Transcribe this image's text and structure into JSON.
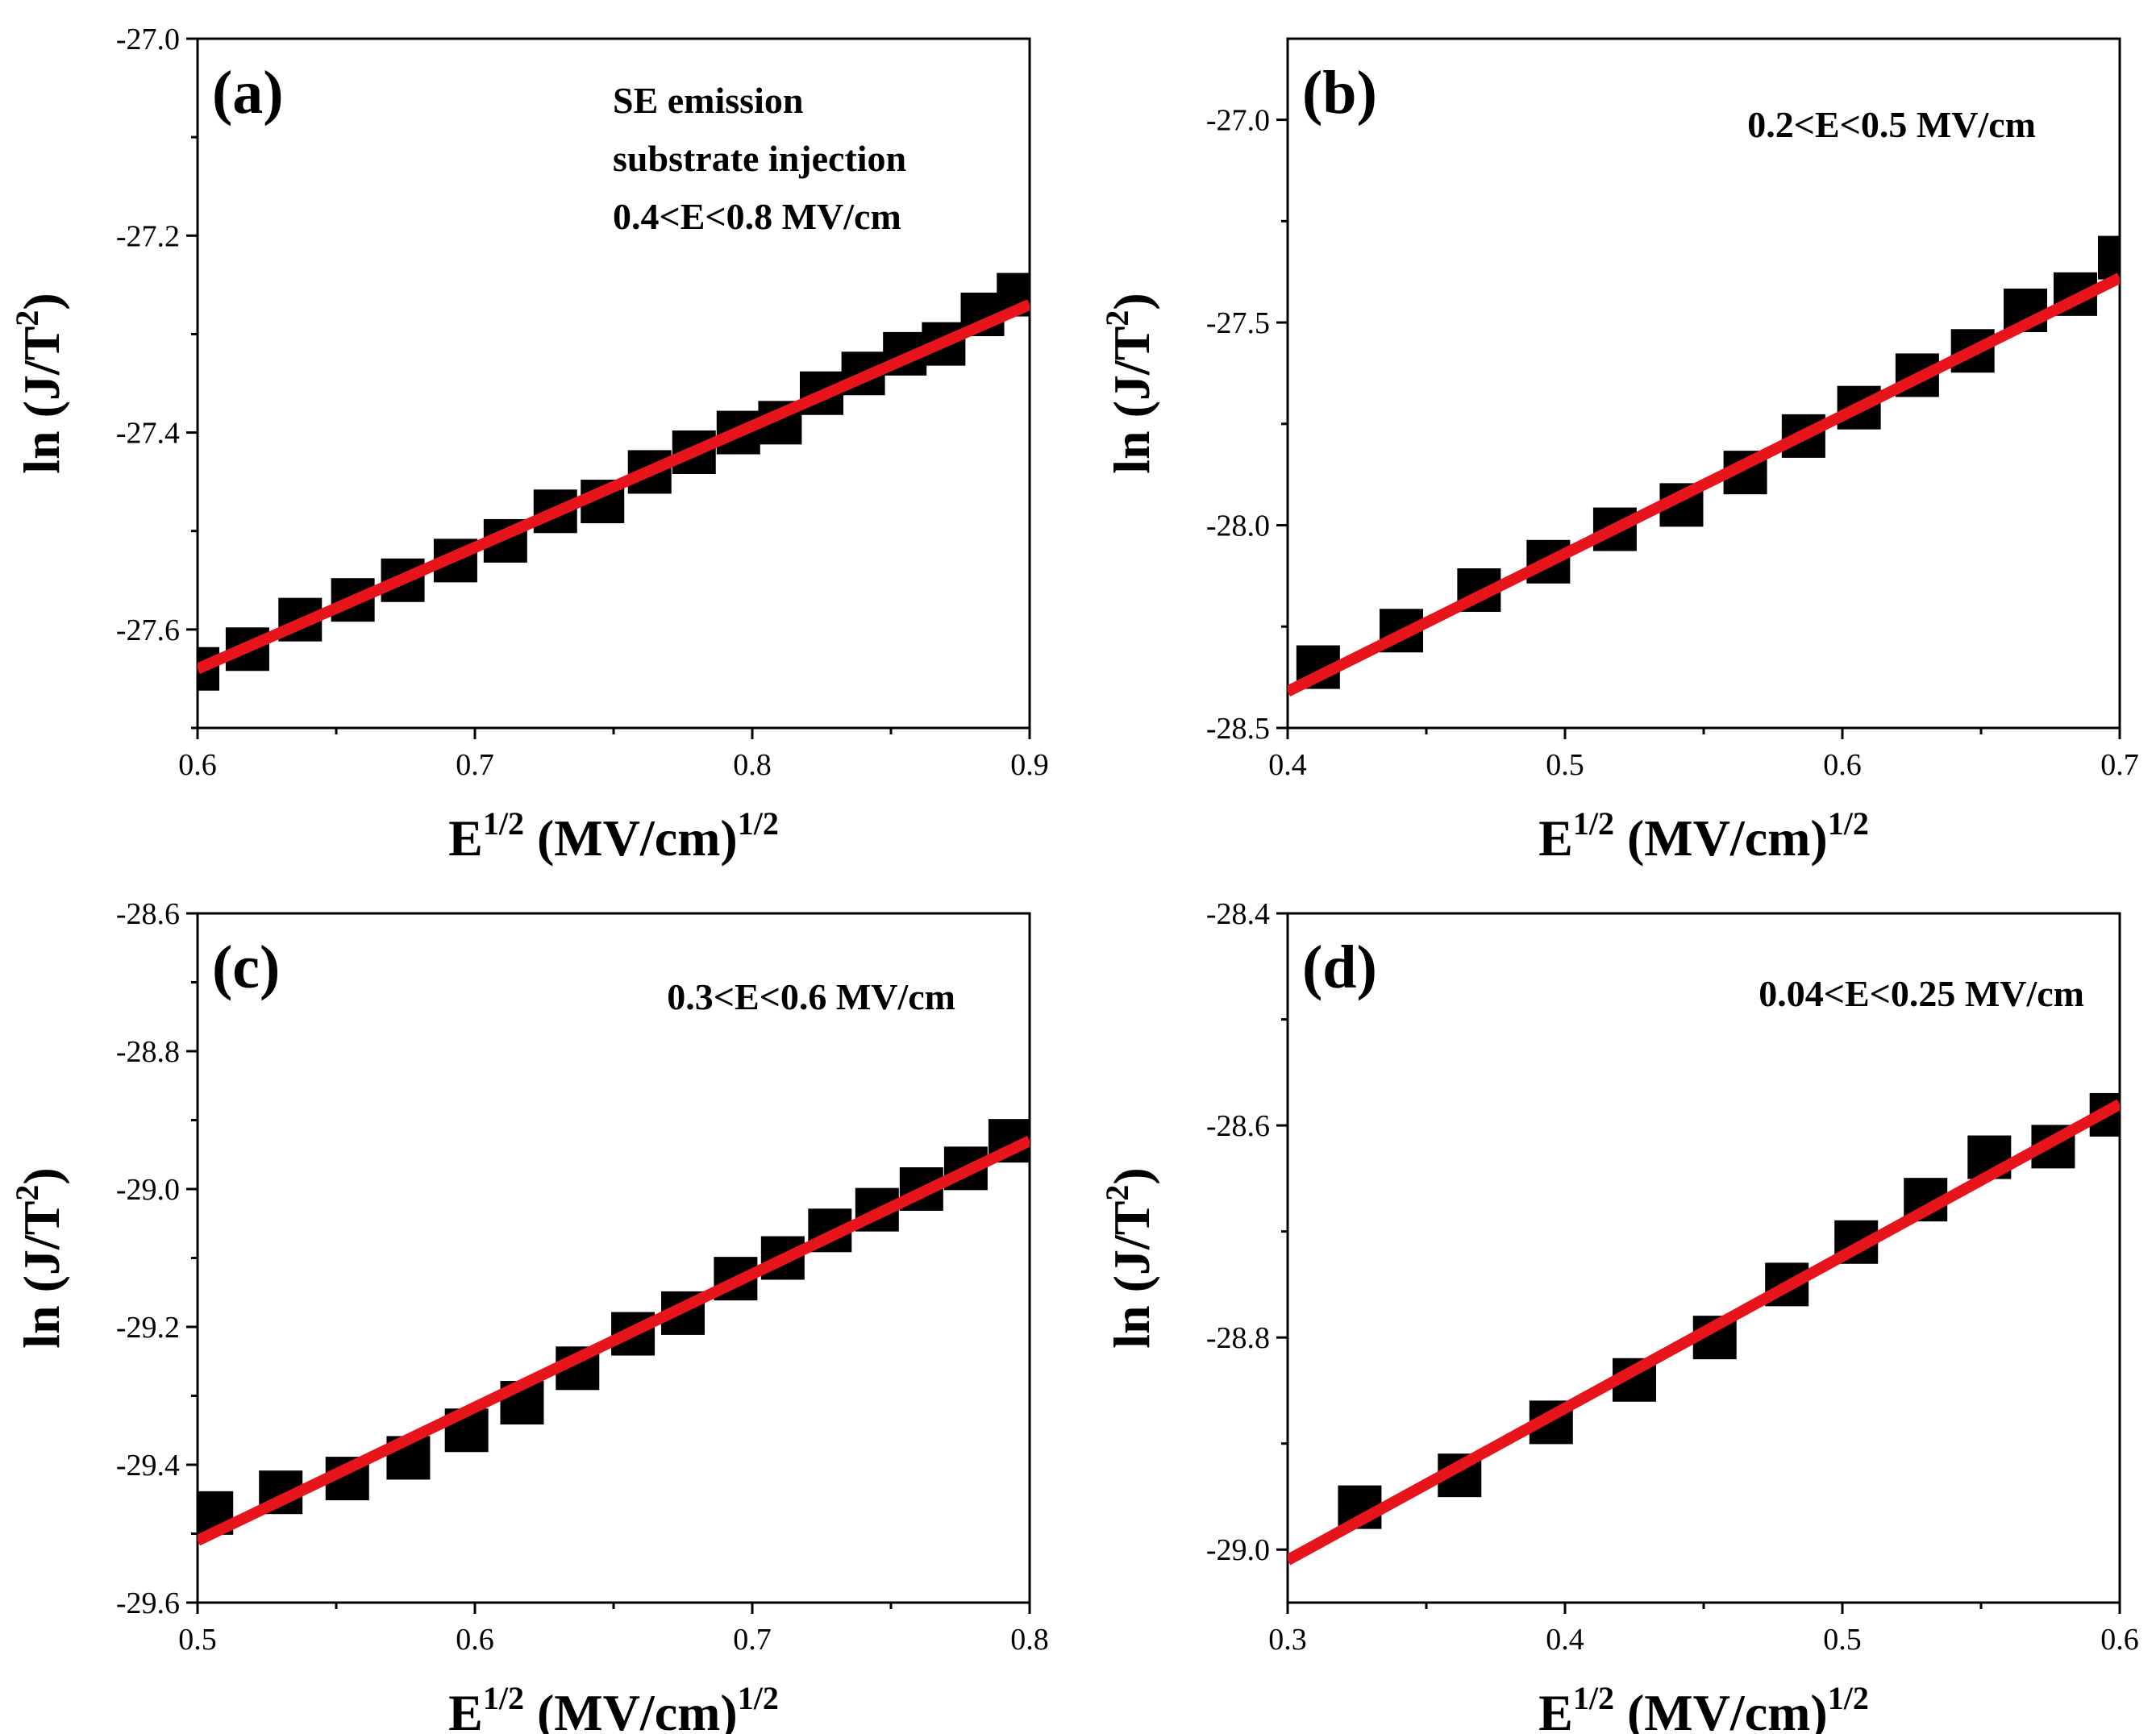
{
  "chart_data": [
    {
      "type": "scatter",
      "panel_label": "(a)",
      "xlabel": "E",
      "xlabel_sup": "1/2",
      "xlabel_unit": "(MV/cm)",
      "xlabel_unit_sup": "1/2",
      "ylabel": "ln (J/T",
      "ylabel_sup": "2",
      "ylabel_end": ")",
      "xlim": [
        0.6,
        0.9
      ],
      "ylim": [
        -27.7,
        -27.0
      ],
      "xticks": [
        0.6,
        0.7,
        0.8,
        0.9
      ],
      "xtick_labels": [
        "0.6",
        "0.7",
        "0.8",
        "0.9"
      ],
      "yticks": [
        -27.6,
        -27.4,
        -27.2,
        -27.0
      ],
      "ytick_labels": [
        "-27.6",
        "-27.4",
        "-27.2",
        "-27.0"
      ],
      "annotations": [
        "SE emission",
        "substrate injection",
        "0.4<E<0.8 MV/cm"
      ],
      "series": [
        {
          "name": "data",
          "marker": "square",
          "color": "#000000",
          "x": [
            0.6,
            0.618,
            0.637,
            0.656,
            0.674,
            0.693,
            0.711,
            0.729,
            0.746,
            0.763,
            0.779,
            0.795,
            0.81,
            0.825,
            0.84,
            0.855,
            0.869,
            0.883,
            0.896
          ],
          "y": [
            -27.64,
            -27.62,
            -27.59,
            -27.57,
            -27.55,
            -27.53,
            -27.51,
            -27.48,
            -27.47,
            -27.44,
            -27.42,
            -27.4,
            -27.39,
            -27.36,
            -27.34,
            -27.32,
            -27.31,
            -27.28,
            -27.26
          ]
        },
        {
          "name": "fit",
          "type": "line",
          "color": "#e8141c",
          "x": [
            0.6,
            0.9
          ],
          "y": [
            -27.64,
            -27.27
          ]
        }
      ]
    },
    {
      "type": "scatter",
      "panel_label": "(b)",
      "xlabel": "E",
      "xlabel_sup": "1/2",
      "xlabel_unit": "(MV/cm)",
      "xlabel_unit_sup": "1/2",
      "ylabel": "ln (J/T",
      "ylabel_sup": "2",
      "ylabel_end": ")",
      "xlim": [
        0.4,
        0.7
      ],
      "ylim": [
        -28.5,
        -26.8
      ],
      "xticks": [
        0.4,
        0.5,
        0.6,
        0.7
      ],
      "xtick_labels": [
        "0.4",
        "0.5",
        "0.6",
        "0.7"
      ],
      "yticks": [
        -28.5,
        -28.0,
        -27.5,
        -27.0
      ],
      "ytick_labels": [
        "-28.5",
        "-28.0",
        "-27.5",
        "-27.0"
      ],
      "annotations": [
        "0.2<E<0.5 MV/cm"
      ],
      "series": [
        {
          "name": "data",
          "marker": "square",
          "color": "#000000",
          "x": [
            0.411,
            0.441,
            0.469,
            0.494,
            0.518,
            0.542,
            0.565,
            0.586,
            0.606,
            0.627,
            0.647,
            0.666,
            0.684,
            0.7
          ],
          "y": [
            -28.35,
            -28.26,
            -28.16,
            -28.09,
            -28.01,
            -27.95,
            -27.87,
            -27.78,
            -27.71,
            -27.63,
            -27.57,
            -27.47,
            -27.43,
            -27.34
          ]
        },
        {
          "name": "fit",
          "type": "line",
          "color": "#e8141c",
          "x": [
            0.4,
            0.7
          ],
          "y": [
            -28.41,
            -27.39
          ]
        }
      ]
    },
    {
      "type": "scatter",
      "panel_label": "(c)",
      "xlabel": "E",
      "xlabel_sup": "1/2",
      "xlabel_unit": "(MV/cm)",
      "xlabel_unit_sup": "1/2",
      "ylabel": "ln (J/T",
      "ylabel_sup": "2",
      "ylabel_end": ")",
      "xlim": [
        0.5,
        0.8
      ],
      "ylim": [
        -29.6,
        -28.6
      ],
      "xticks": [
        0.5,
        0.6,
        0.7,
        0.8
      ],
      "xtick_labels": [
        "0.5",
        "0.6",
        "0.7",
        "0.8"
      ],
      "yticks": [
        -29.6,
        -29.4,
        -29.2,
        -29.0,
        -28.8,
        -28.6
      ],
      "ytick_labels": [
        "-29.6",
        "-29.4",
        "-29.2",
        "-29.0",
        "-28.8",
        "-28.6"
      ],
      "annotations": [
        "0.3<E<0.6 MV/cm"
      ],
      "series": [
        {
          "name": "data",
          "marker": "square",
          "color": "#000000",
          "x": [
            0.505,
            0.53,
            0.554,
            0.576,
            0.597,
            0.617,
            0.637,
            0.657,
            0.675,
            0.694,
            0.711,
            0.728,
            0.745,
            0.761,
            0.777,
            0.793
          ],
          "y": [
            -29.47,
            -29.44,
            -29.42,
            -29.39,
            -29.35,
            -29.31,
            -29.26,
            -29.21,
            -29.18,
            -29.13,
            -29.1,
            -29.06,
            -29.03,
            -29.0,
            -28.97,
            -28.93
          ]
        },
        {
          "name": "fit",
          "type": "line",
          "color": "#e8141c",
          "x": [
            0.5,
            0.8
          ],
          "y": [
            -29.51,
            -28.93
          ]
        }
      ]
    },
    {
      "type": "scatter",
      "panel_label": "(d)",
      "xlabel": "E",
      "xlabel_sup": "1/2",
      "xlabel_unit": "(MV/cm)",
      "xlabel_unit_sup": "1/2",
      "ylabel": "ln (J/T",
      "ylabel_sup": "2",
      "ylabel_end": ")",
      "xlim": [
        0.3,
        0.6
      ],
      "ylim": [
        -29.05,
        -28.4
      ],
      "xticks": [
        0.3,
        0.4,
        0.5,
        0.6
      ],
      "xtick_labels": [
        "0.3",
        "0.4",
        "0.5",
        "0.6"
      ],
      "yticks": [
        -29.0,
        -28.8,
        -28.6,
        -28.4
      ],
      "ytick_labels": [
        "-29.0",
        "-28.8",
        "-28.6",
        "-28.4"
      ],
      "annotations": [
        "0.04<E<0.25 MV/cm"
      ],
      "series": [
        {
          "name": "data",
          "marker": "square",
          "color": "#000000",
          "x": [
            0.326,
            0.362,
            0.395,
            0.425,
            0.454,
            0.48,
            0.505,
            0.53,
            0.553,
            0.576,
            0.597
          ],
          "y": [
            -28.96,
            -28.93,
            -28.88,
            -28.84,
            -28.8,
            -28.75,
            -28.71,
            -28.67,
            -28.63,
            -28.62,
            -28.59
          ]
        },
        {
          "name": "fit",
          "type": "line",
          "color": "#e8141c",
          "x": [
            0.3,
            0.6
          ],
          "y": [
            -29.01,
            -28.58
          ]
        }
      ]
    }
  ]
}
